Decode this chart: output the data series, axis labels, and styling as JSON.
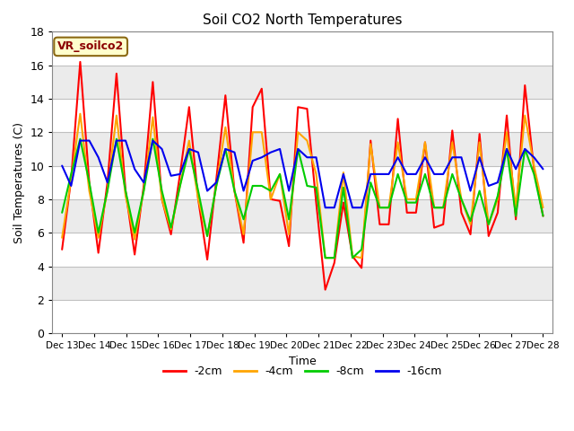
{
  "title": "Soil CO2 North Temperatures",
  "xlabel": "Time",
  "ylabel": "Soil Temperatures (C)",
  "ylim": [
    0,
    18
  ],
  "yticks": [
    0,
    2,
    4,
    6,
    8,
    10,
    12,
    14,
    16,
    18
  ],
  "annotation_text": "VR_soilco2",
  "legend_labels": [
    "-2cm",
    "-4cm",
    "-8cm",
    "-16cm"
  ],
  "line_colors": [
    "#ff0000",
    "#ffa500",
    "#00cc00",
    "#0000ee"
  ],
  "fig_bg_color": "#ffffff",
  "plot_bg_color": "#ffffff",
  "stripe_color_light": "#ebebeb",
  "stripe_color_white": "#ffffff",
  "x_tick_labels": [
    "Dec 13",
    "Dec 14",
    "Dec 15",
    "Dec 16",
    "Dec 17",
    "Dec 18",
    "Dec 19",
    "Dec 20",
    "Dec 21",
    "Dec 22",
    "Dec 23",
    "Dec 24",
    "Dec 25",
    "Dec 26",
    "Dec 27",
    "Dec 28"
  ],
  "series": {
    "2cm": [
      5.0,
      9.2,
      16.2,
      9.0,
      4.8,
      9.0,
      15.5,
      8.5,
      4.7,
      8.8,
      15.0,
      8.0,
      5.9,
      9.5,
      13.5,
      8.0,
      4.4,
      9.2,
      14.2,
      8.5,
      5.4,
      13.5,
      14.6,
      8.0,
      7.9,
      5.2,
      13.5,
      13.4,
      7.8,
      2.6,
      4.2,
      7.8,
      4.6,
      3.9,
      11.5,
      6.5,
      6.5,
      12.8,
      7.2,
      7.2,
      11.4,
      6.3,
      6.5,
      12.1,
      7.2,
      5.9,
      11.9,
      5.8,
      7.2,
      13.0,
      6.8,
      14.8,
      9.8,
      7.0
    ],
    "4cm": [
      5.7,
      9.2,
      13.1,
      8.5,
      5.7,
      8.5,
      13.0,
      8.2,
      5.6,
      8.5,
      12.9,
      8.0,
      6.2,
      8.8,
      11.5,
      8.0,
      5.8,
      8.8,
      12.3,
      8.5,
      5.9,
      12.0,
      12.0,
      8.0,
      9.5,
      5.9,
      12.0,
      11.5,
      9.5,
      4.5,
      4.5,
      9.6,
      4.6,
      4.5,
      11.3,
      7.5,
      7.5,
      11.4,
      8.0,
      8.0,
      11.4,
      7.5,
      7.5,
      11.4,
      8.0,
      6.5,
      11.4,
      6.5,
      8.0,
      12.0,
      7.5,
      13.0,
      10.0,
      7.5
    ],
    "8cm": [
      7.2,
      9.5,
      11.6,
      9.0,
      6.0,
      8.5,
      11.6,
      8.5,
      6.0,
      8.5,
      11.6,
      8.5,
      6.3,
      8.8,
      11.0,
      8.5,
      5.8,
      8.8,
      11.0,
      8.5,
      6.8,
      8.8,
      8.8,
      8.5,
      9.5,
      6.8,
      11.0,
      8.8,
      8.7,
      4.5,
      4.5,
      8.7,
      4.5,
      5.0,
      9.0,
      7.5,
      7.5,
      9.5,
      7.8,
      7.8,
      9.5,
      7.5,
      7.5,
      9.5,
      8.0,
      6.7,
      8.5,
      6.5,
      8.2,
      11.0,
      7.0,
      11.0,
      9.5,
      7.0
    ],
    "16cm": [
      10.0,
      8.8,
      11.5,
      11.5,
      10.5,
      9.0,
      11.5,
      11.5,
      9.8,
      9.0,
      11.5,
      11.0,
      9.4,
      9.5,
      11.0,
      10.8,
      8.5,
      9.0,
      11.0,
      10.8,
      8.5,
      10.3,
      10.5,
      10.8,
      11.0,
      8.5,
      11.0,
      10.5,
      10.5,
      7.5,
      7.5,
      9.5,
      7.5,
      7.5,
      9.5,
      9.5,
      9.5,
      10.5,
      9.5,
      9.5,
      10.5,
      9.5,
      9.5,
      10.5,
      10.5,
      8.5,
      10.5,
      8.8,
      9.0,
      11.0,
      9.8,
      11.0,
      10.5,
      9.8
    ]
  }
}
